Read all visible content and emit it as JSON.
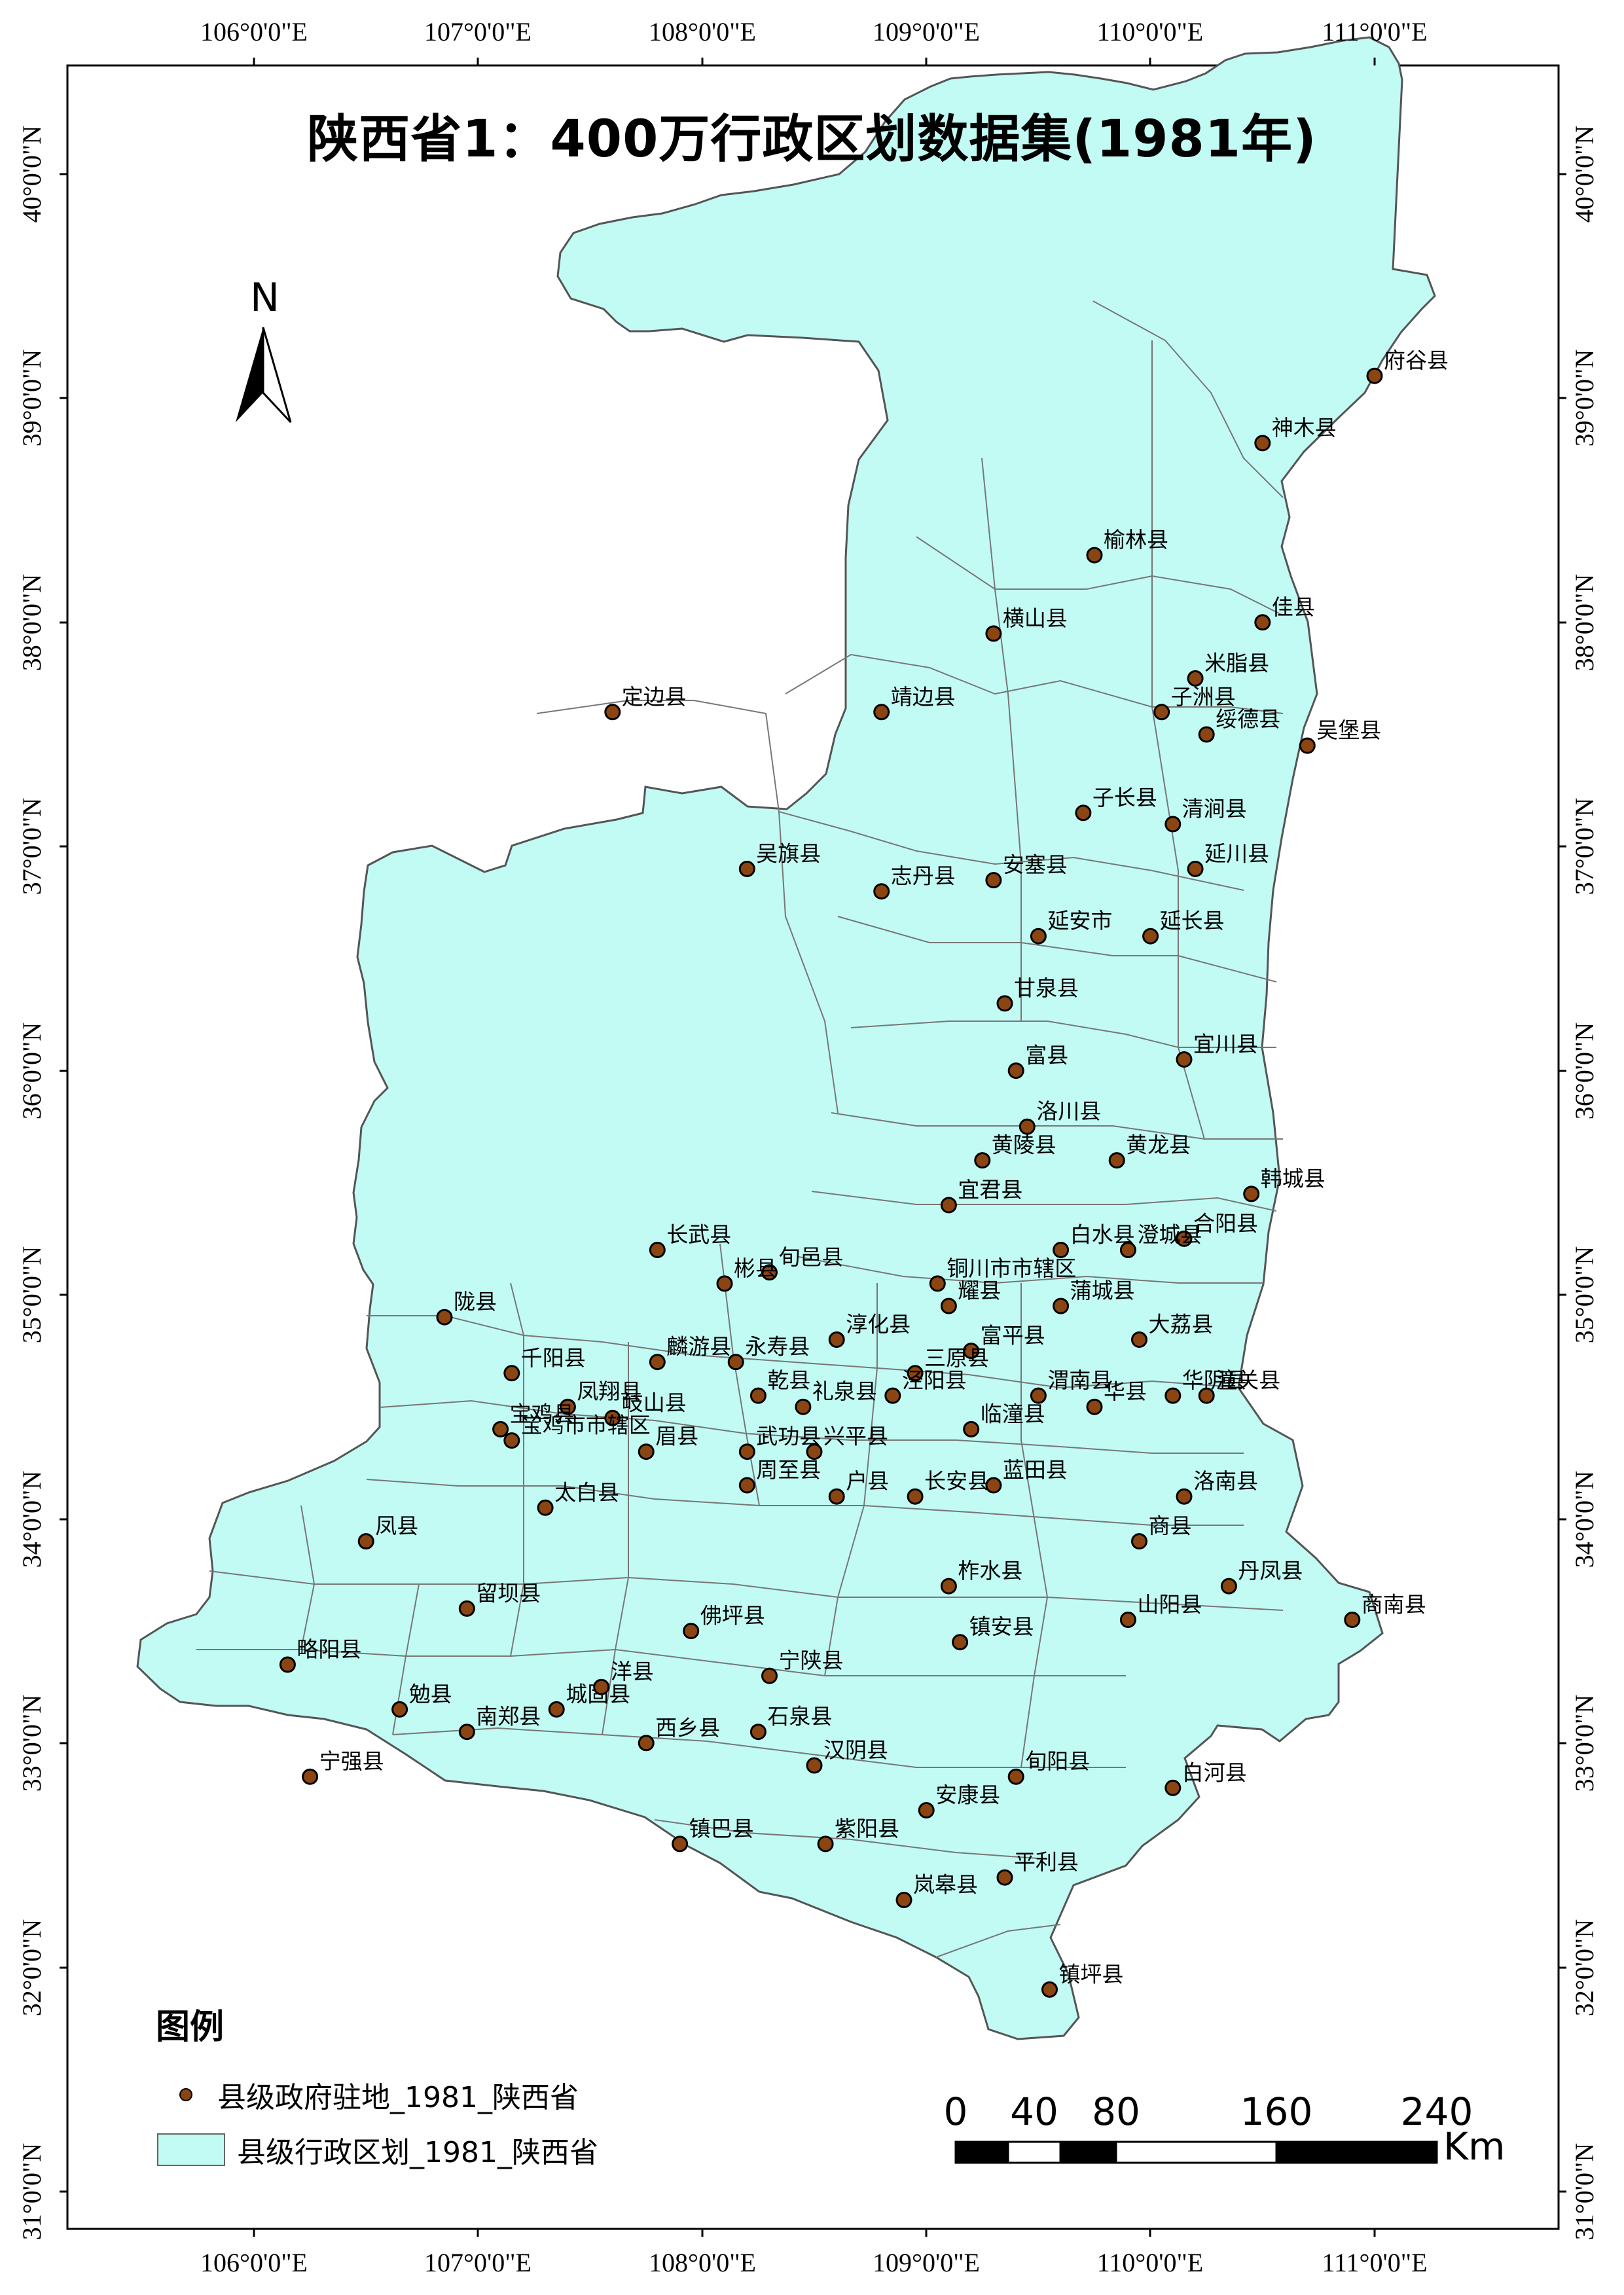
{
  "title": "陕西省1：400万行政区划数据集(1981年)",
  "north_arrow": "N",
  "legend": {
    "title": "图例",
    "point_label": "县级政府驻地_1981_陕西省",
    "polygon_label": "县级行政区划_1981_陕西省"
  },
  "scale_bar": {
    "labels": [
      "0",
      "40",
      "80",
      "160",
      "240"
    ],
    "unit": "Km"
  },
  "lon_labels": [
    "106°0'0\"E",
    "107°0'0\"E",
    "108°0'0\"E",
    "109°0'0\"E",
    "110°0'0\"E",
    "111°0'0\"E"
  ],
  "lat_labels": [
    "40°0'0\"N",
    "39°0'0\"N",
    "38°0'0\"N",
    "37°0'0\"N",
    "36°0'0\"N",
    "35°0'0\"N",
    "34°0'0\"N",
    "33°0'0\"N",
    "32°0'0\"N",
    "31°0'0\"N"
  ],
  "colors": {
    "region_fill": "#C2FAF4",
    "region_border": "#666666",
    "point_fill": "#8B4513",
    "point_border": "#000000"
  },
  "counties": [
    {
      "name": "府谷县",
      "lon": 111.0,
      "lat": 39.1
    },
    {
      "name": "神木县",
      "lon": 110.5,
      "lat": 38.8
    },
    {
      "name": "榆林县",
      "lon": 109.75,
      "lat": 38.3
    },
    {
      "name": "佳县",
      "lon": 110.5,
      "lat": 38.0
    },
    {
      "name": "横山县",
      "lon": 109.3,
      "lat": 37.95
    },
    {
      "name": "米脂县",
      "lon": 110.2,
      "lat": 37.75
    },
    {
      "name": "子洲县",
      "lon": 110.05,
      "lat": 37.6
    },
    {
      "name": "绥德县",
      "lon": 110.25,
      "lat": 37.5
    },
    {
      "name": "吴堡县",
      "lon": 110.7,
      "lat": 37.45
    },
    {
      "name": "定边县",
      "lon": 107.6,
      "lat": 37.6
    },
    {
      "name": "靖边县",
      "lon": 108.8,
      "lat": 37.6
    },
    {
      "name": "子长县",
      "lon": 109.7,
      "lat": 37.15
    },
    {
      "name": "清涧县",
      "lon": 110.1,
      "lat": 37.1
    },
    {
      "name": "延川县",
      "lon": 110.2,
      "lat": 36.9
    },
    {
      "name": "吴旗县",
      "lon": 108.2,
      "lat": 36.9
    },
    {
      "name": "志丹县",
      "lon": 108.8,
      "lat": 36.8
    },
    {
      "name": "安塞县",
      "lon": 109.3,
      "lat": 36.85
    },
    {
      "name": "延安市",
      "lon": 109.5,
      "lat": 36.6
    },
    {
      "name": "延长县",
      "lon": 110.0,
      "lat": 36.6
    },
    {
      "name": "甘泉县",
      "lon": 109.35,
      "lat": 36.3
    },
    {
      "name": "宜川县",
      "lon": 110.15,
      "lat": 36.05
    },
    {
      "name": "富县",
      "lon": 109.4,
      "lat": 36.0
    },
    {
      "name": "洛川县",
      "lon": 109.45,
      "lat": 35.75
    },
    {
      "name": "黄陵县",
      "lon": 109.25,
      "lat": 35.6
    },
    {
      "name": "黄龙县",
      "lon": 109.85,
      "lat": 35.6
    },
    {
      "name": "韩城县",
      "lon": 110.45,
      "lat": 35.45
    },
    {
      "name": "宜君县",
      "lon": 109.1,
      "lat": 35.4
    },
    {
      "name": "合阳县",
      "lon": 110.15,
      "lat": 35.25
    },
    {
      "name": "白水县",
      "lon": 109.6,
      "lat": 35.2
    },
    {
      "name": "澄城县",
      "lon": 109.9,
      "lat": 35.2
    },
    {
      "name": "长武县",
      "lon": 107.8,
      "lat": 35.2
    },
    {
      "name": "旬邑县",
      "lon": 108.3,
      "lat": 35.1
    },
    {
      "name": "彬县",
      "lon": 108.1,
      "lat": 35.05
    },
    {
      "name": "铜川市市辖区",
      "lon": 109.05,
      "lat": 35.05
    },
    {
      "name": "耀县",
      "lon": 109.1,
      "lat": 34.95
    },
    {
      "name": "蒲城县",
      "lon": 109.6,
      "lat": 34.95
    },
    {
      "name": "陇县",
      "lon": 106.85,
      "lat": 34.9
    },
    {
      "name": "淳化县",
      "lon": 108.6,
      "lat": 34.8
    },
    {
      "name": "富平县",
      "lon": 109.2,
      "lat": 34.75
    },
    {
      "name": "大荔县",
      "lon": 109.95,
      "lat": 34.8
    },
    {
      "name": "永寿县",
      "lon": 108.15,
      "lat": 34.7
    },
    {
      "name": "麟游县",
      "lon": 107.8,
      "lat": 34.7
    },
    {
      "name": "千阳县",
      "lon": 107.15,
      "lat": 34.65
    },
    {
      "name": "三原县",
      "lon": 108.95,
      "lat": 34.65
    },
    {
      "name": "乾县",
      "lon": 108.25,
      "lat": 34.55
    },
    {
      "name": "泾阳县",
      "lon": 108.85,
      "lat": 34.55
    },
    {
      "name": "渭南县",
      "lon": 109.5,
      "lat": 34.55
    },
    {
      "name": "华县",
      "lon": 109.75,
      "lat": 34.5
    },
    {
      "name": "华阴县",
      "lon": 110.1,
      "lat": 34.55
    },
    {
      "name": "潼关县",
      "lon": 110.25,
      "lat": 34.55
    },
    {
      "name": "凤翔县",
      "lon": 107.4,
      "lat": 34.5
    },
    {
      "name": "礼泉县",
      "lon": 108.45,
      "lat": 34.5
    },
    {
      "name": "临潼县",
      "lon": 109.2,
      "lat": 34.4
    },
    {
      "name": "宝鸡县",
      "lon": 107.1,
      "lat": 34.4
    },
    {
      "name": "岐山县",
      "lon": 107.6,
      "lat": 34.45
    },
    {
      "name": "眉县",
      "lon": 107.75,
      "lat": 34.3
    },
    {
      "name": "武功县",
      "lon": 108.2,
      "lat": 34.3
    },
    {
      "name": "宝鸡市市辖区",
      "lon": 107.15,
      "lat": 34.35
    },
    {
      "name": "兴平县",
      "lon": 108.5,
      "lat": 34.3
    },
    {
      "name": "户县",
      "lon": 108.6,
      "lat": 34.1
    },
    {
      "name": "长安县",
      "lon": 108.95,
      "lat": 34.1
    },
    {
      "name": "蓝田县",
      "lon": 109.3,
      "lat": 34.15
    },
    {
      "name": "太白县",
      "lon": 107.3,
      "lat": 34.05
    },
    {
      "name": "周至县",
      "lon": 108.2,
      "lat": 34.15
    },
    {
      "name": "洛南县",
      "lon": 110.15,
      "lat": 34.1
    },
    {
      "name": "凤县",
      "lon": 106.5,
      "lat": 33.9
    },
    {
      "name": "商县",
      "lon": 109.95,
      "lat": 33.9
    },
    {
      "name": "柞水县",
      "lon": 109.1,
      "lat": 33.7
    },
    {
      "name": "丹凤县",
      "lon": 110.35,
      "lat": 33.7
    },
    {
      "name": "留坝县",
      "lon": 106.95,
      "lat": 33.6
    },
    {
      "name": "佛坪县",
      "lon": 107.95,
      "lat": 33.5
    },
    {
      "name": "山阳县",
      "lon": 109.9,
      "lat": 33.55
    },
    {
      "name": "商南县",
      "lon": 110.9,
      "lat": 33.55
    },
    {
      "name": "镇安县",
      "lon": 109.15,
      "lat": 33.45
    },
    {
      "name": "略阳县",
      "lon": 106.15,
      "lat": 33.35
    },
    {
      "name": "宁陕县",
      "lon": 108.3,
      "lat": 33.3
    },
    {
      "name": "勉县",
      "lon": 106.65,
      "lat": 33.15
    },
    {
      "name": "城固县",
      "lon": 107.35,
      "lat": 33.15
    },
    {
      "name": "洋县",
      "lon": 107.55,
      "lat": 33.25
    },
    {
      "name": "南郑县",
      "lon": 106.95,
      "lat": 33.05
    },
    {
      "name": "西乡县",
      "lon": 107.75,
      "lat": 33.0
    },
    {
      "name": "石泉县",
      "lon": 108.25,
      "lat": 33.05
    },
    {
      "name": "汉阴县",
      "lon": 108.5,
      "lat": 32.9
    },
    {
      "name": "宁强县",
      "lon": 106.25,
      "lat": 32.85
    },
    {
      "name": "旬阳县",
      "lon": 109.4,
      "lat": 32.85
    },
    {
      "name": "白河县",
      "lon": 110.1,
      "lat": 32.8
    },
    {
      "name": "安康县",
      "lon": 109.0,
      "lat": 32.7
    },
    {
      "name": "镇巴县",
      "lon": 107.9,
      "lat": 32.55
    },
    {
      "name": "紫阳县",
      "lon": 108.55,
      "lat": 32.55
    },
    {
      "name": "平利县",
      "lon": 109.35,
      "lat": 32.4
    },
    {
      "name": "岚皋县",
      "lon": 108.9,
      "lat": 32.3
    },
    {
      "name": "镇坪县",
      "lon": 109.55,
      "lat": 31.9
    }
  ]
}
